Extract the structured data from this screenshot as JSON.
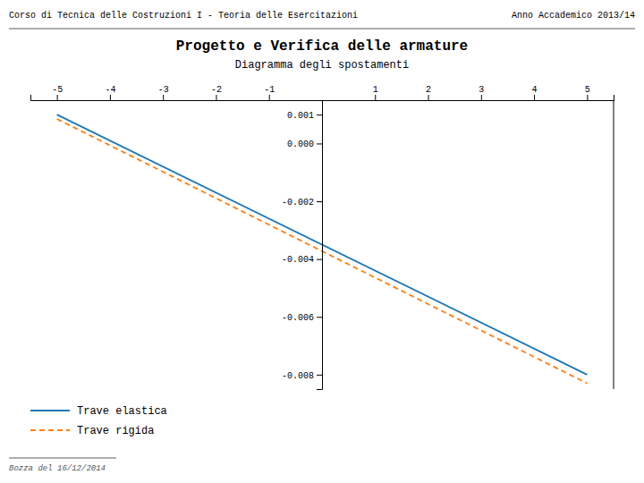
{
  "chart_data": {
    "type": "line",
    "title": "Progetto e Verifica delle armature",
    "subtitle": "Diagramma degli spostamenti",
    "annotations": [
      "Corso di Tecnica delle Costruzioni I - Teoria delle Esercitazioni",
      "Anno Accademico 2013/14",
      "Bozza del 16/12/2014"
    ],
    "x": [
      -5.0,
      5.0
    ],
    "series": [
      {
        "name": "Trave elastica",
        "line_style": "solid",
        "values": [
          0.001,
          -0.008
        ]
      },
      {
        "name": "Trave rigida",
        "line_style": "dashed",
        "values": [
          0.00085,
          -0.0083
        ]
      }
    ],
    "xlim": [
      -5.5,
      5.5
    ],
    "xticks": [
      -5,
      -4,
      -3,
      -2,
      -1,
      1,
      2,
      3,
      4,
      5
    ],
    "ylim": [
      -0.0085,
      0.0015
    ],
    "yticks": [
      0.001,
      {
        "value": 0,
        "label": "0.000"
      },
      -0.002,
      -0.004,
      -0.006,
      -0.008
    ],
    "grid": false,
    "legend": "lower left"
  }
}
